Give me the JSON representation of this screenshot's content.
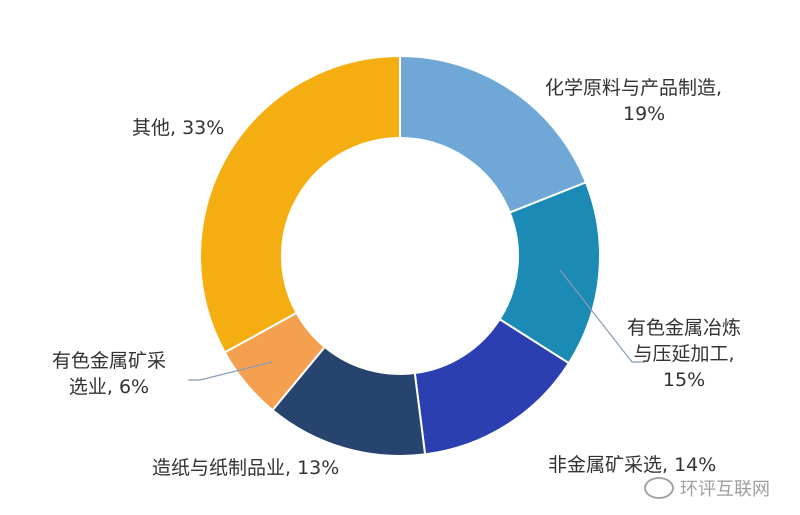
{
  "chart_data": {
    "type": "pie",
    "donut": true,
    "slices": [
      {
        "label": "化学原料与产品制造",
        "value": 19,
        "color": "#6fa8d6",
        "text": "化学原料与产品制造,",
        "pct_text": "19%"
      },
      {
        "label": "有色金属冶炼与压延加工",
        "value": 15,
        "color": "#1b8ab4",
        "text1": "有色金属冶炼",
        "text2": "与压延加工,",
        "pct_text": "15%"
      },
      {
        "label": "非金属矿采选",
        "value": 14,
        "color": "#2b3fb0",
        "text": "非金属矿采选, 14%"
      },
      {
        "label": "造纸与纸制品业",
        "value": 13,
        "color": "#26446e",
        "text": "造纸与纸制品业, 13%"
      },
      {
        "label": "有色金属矿采选业",
        "value": 6,
        "color": "#f4a04e",
        "text1": "有色金属矿采",
        "text2": "选业, 6%"
      },
      {
        "label": "其他",
        "value": 33,
        "color": "#f5ae12",
        "text": "其他, 33%"
      }
    ]
  },
  "watermark": {
    "text": "环评互联网",
    "icon": "wechat-icon"
  }
}
